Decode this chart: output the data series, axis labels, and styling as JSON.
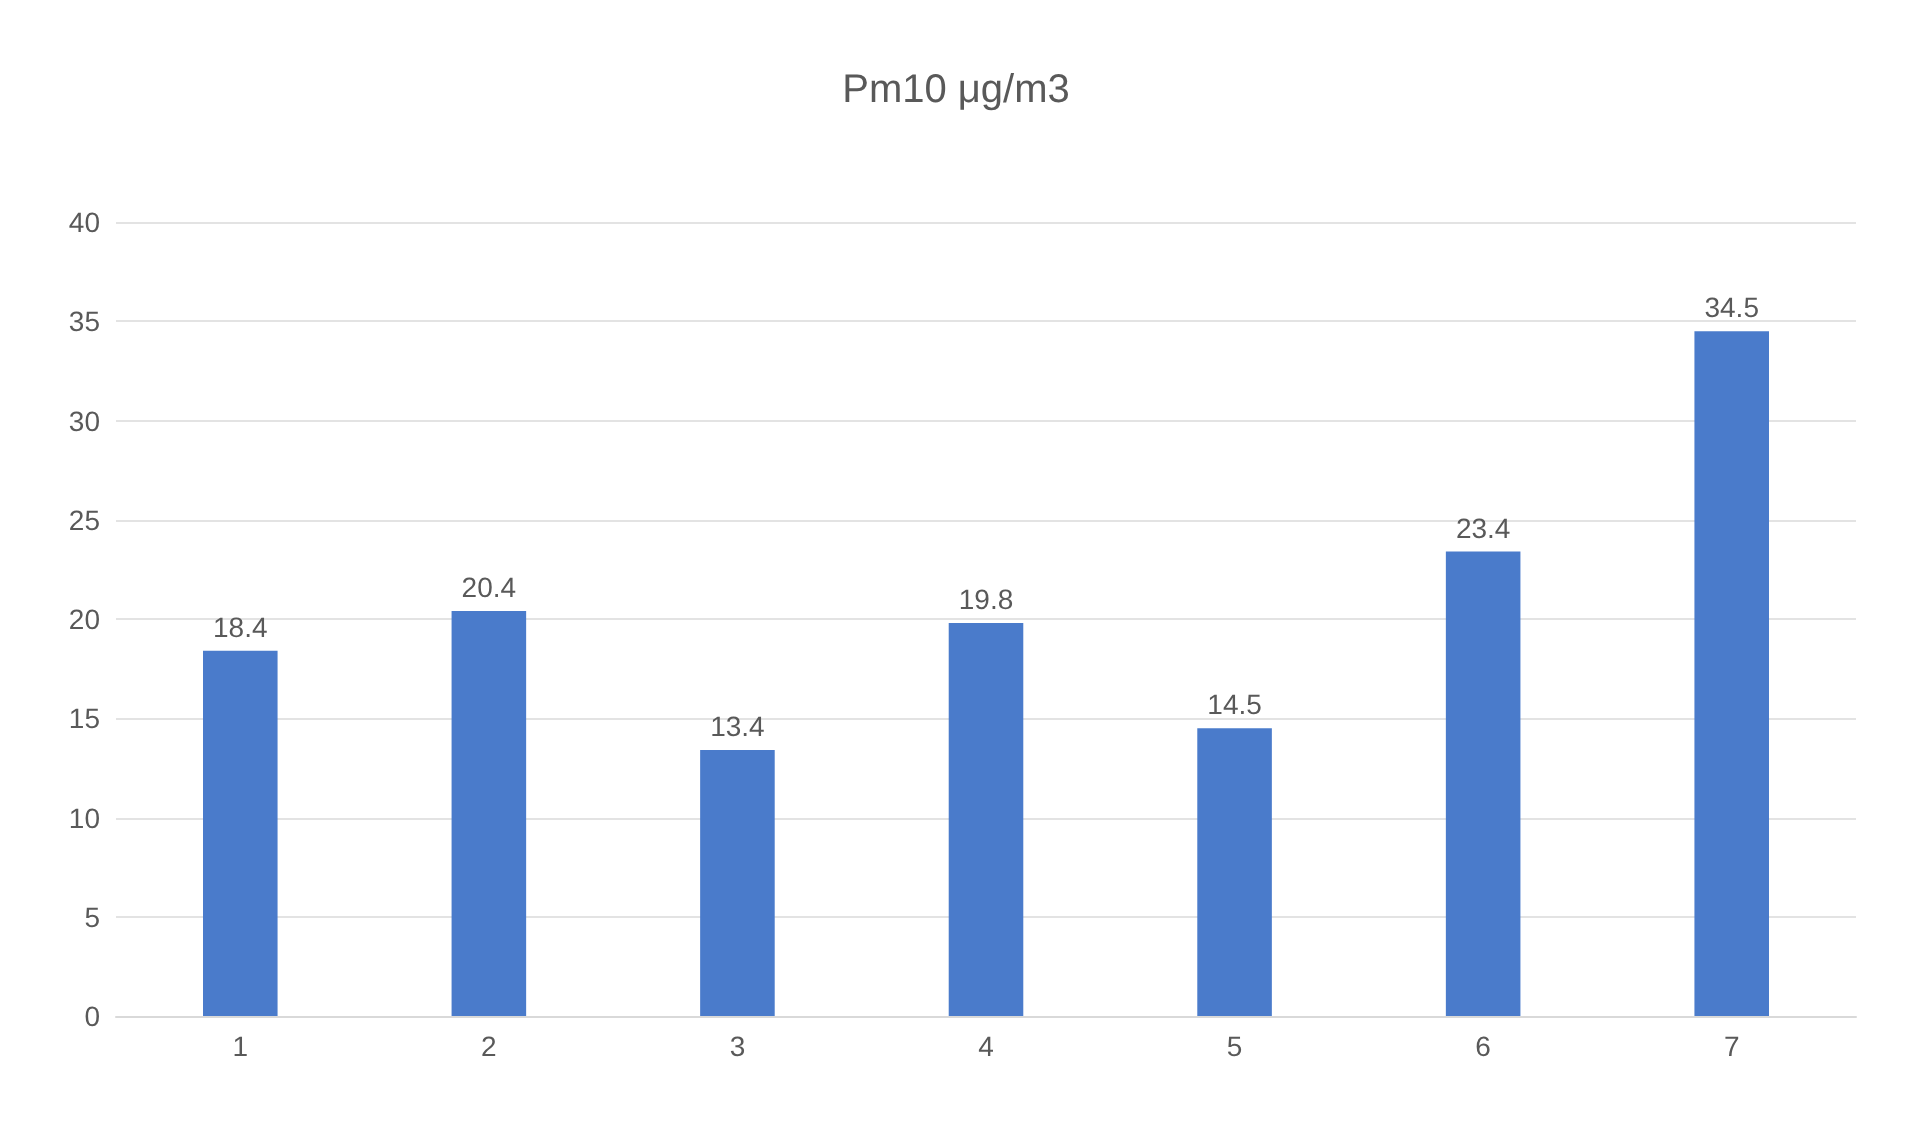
{
  "chart_data": {
    "type": "bar",
    "title": "Pm10 μg/m3",
    "categories": [
      "1",
      "2",
      "3",
      "4",
      "5",
      "6",
      "7"
    ],
    "values": [
      18.4,
      20.4,
      13.4,
      19.8,
      14.5,
      23.4,
      34.5
    ],
    "color": "#4a7bcb",
    "ylim": [
      0,
      40
    ],
    "yticks": [
      0,
      5,
      10,
      15,
      20,
      25,
      30,
      35,
      40
    ],
    "grid": "y",
    "data_labels": true
  }
}
